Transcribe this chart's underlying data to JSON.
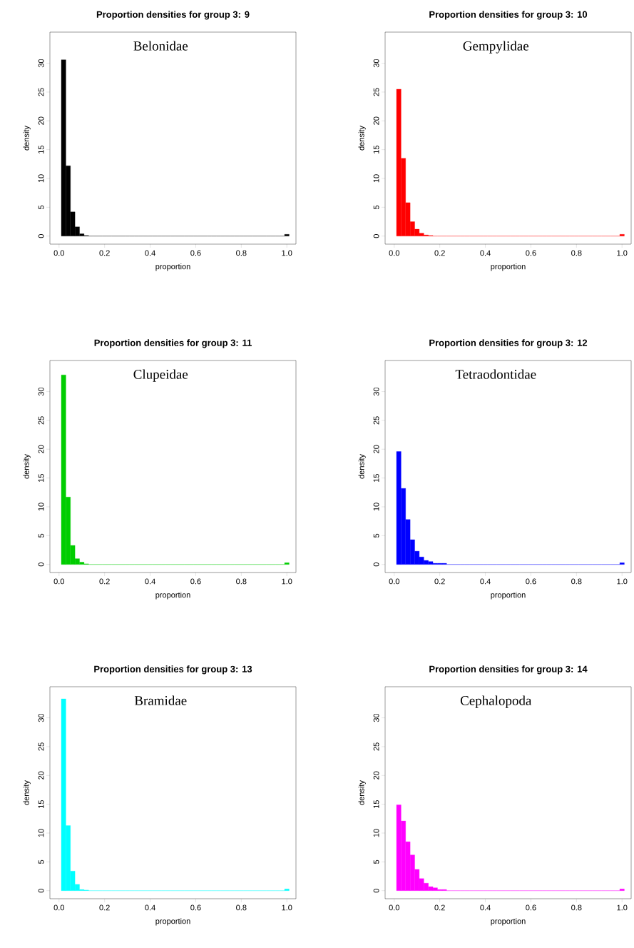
{
  "chart_data": [
    {
      "type": "histogram",
      "title": "Proportion densities for group 3: 9",
      "xlabel": "proportion",
      "ylabel": "density",
      "annotations": [
        "Belonidae"
      ],
      "color": "#000000",
      "bins": [
        0.01,
        0.03,
        0.05,
        0.07,
        0.09,
        0.11,
        0.13,
        0.15,
        0.17,
        0.19,
        0.21,
        0.23,
        0.25,
        0.27,
        0.29,
        0.31,
        0.33,
        0.35,
        0.37,
        0.39,
        0.41,
        0.43,
        0.45,
        0.47,
        0.49,
        0.51,
        0.53,
        0.55,
        0.57,
        0.59,
        0.61,
        0.63,
        0.65,
        0.67,
        0.69,
        0.71,
        0.73,
        0.75,
        0.77,
        0.79,
        0.81,
        0.83,
        0.85,
        0.87,
        0.89,
        0.91,
        0.93,
        0.95,
        0.97,
        0.99,
        1.01
      ],
      "values": [
        30.6,
        12.2,
        4.2,
        1.6,
        0.4,
        0.1,
        0,
        0,
        0,
        0,
        0,
        0,
        0,
        0,
        0,
        0,
        0,
        0,
        0,
        0,
        0,
        0,
        0,
        0,
        0,
        0,
        0,
        0,
        0,
        0,
        0,
        0,
        0,
        0,
        0,
        0,
        0,
        0,
        0,
        0,
        0,
        0,
        0,
        0,
        0,
        0,
        0,
        0,
        0,
        0.3
      ],
      "xlim": [
        -0.04,
        1.04
      ],
      "ylim": [
        -1.4,
        35.4
      ],
      "xticks": [
        {
          "value": 0,
          "label": "0.0"
        },
        {
          "value": 0.2,
          "label": "0.2"
        },
        {
          "value": 0.4,
          "label": "0.4"
        },
        {
          "value": 0.6,
          "label": "0.6"
        },
        {
          "value": 0.8,
          "label": "0.8"
        },
        {
          "value": 1,
          "label": "1.0"
        }
      ],
      "yticks": [
        0,
        5,
        10,
        15,
        20,
        25,
        30
      ]
    },
    {
      "type": "histogram",
      "title": "Proportion densities for group 3: 10",
      "xlabel": "proportion",
      "ylabel": "density",
      "annotations": [
        "Gempylidae"
      ],
      "color": "#ff0000",
      "bins": [
        0.01,
        0.03,
        0.05,
        0.07,
        0.09,
        0.11,
        0.13,
        0.15,
        0.17,
        0.19,
        0.21,
        0.23,
        0.25,
        0.27,
        0.29,
        0.31,
        0.33,
        0.35,
        0.37,
        0.39,
        0.41,
        0.43,
        0.45,
        0.47,
        0.49,
        0.51,
        0.53,
        0.55,
        0.57,
        0.59,
        0.61,
        0.63,
        0.65,
        0.67,
        0.69,
        0.71,
        0.73,
        0.75,
        0.77,
        0.79,
        0.81,
        0.83,
        0.85,
        0.87,
        0.89,
        0.91,
        0.93,
        0.95,
        0.97,
        0.99,
        1.01
      ],
      "values": [
        25.5,
        13.5,
        5.8,
        2.5,
        1.2,
        0.5,
        0.2,
        0.1,
        0,
        0,
        0,
        0,
        0,
        0,
        0,
        0,
        0,
        0,
        0,
        0,
        0,
        0,
        0,
        0,
        0,
        0,
        0,
        0,
        0,
        0,
        0,
        0,
        0,
        0,
        0,
        0,
        0,
        0,
        0,
        0,
        0,
        0,
        0,
        0,
        0,
        0,
        0,
        0,
        0,
        0.3
      ],
      "xlim": [
        -0.04,
        1.04
      ],
      "ylim": [
        -1.4,
        35.4
      ],
      "xticks": [
        {
          "value": 0,
          "label": "0.0"
        },
        {
          "value": 0.2,
          "label": "0.2"
        },
        {
          "value": 0.4,
          "label": "0.4"
        },
        {
          "value": 0.6,
          "label": "0.6"
        },
        {
          "value": 0.8,
          "label": "0.8"
        },
        {
          "value": 1,
          "label": "1.0"
        }
      ],
      "yticks": [
        0,
        5,
        10,
        15,
        20,
        25,
        30
      ]
    },
    {
      "type": "histogram",
      "title": "Proportion densities for group 3: 11",
      "xlabel": "proportion",
      "ylabel": "density",
      "annotations": [
        "Clupeidae"
      ],
      "color": "#00cd00",
      "bins": [
        0.01,
        0.03,
        0.05,
        0.07,
        0.09,
        0.11,
        0.13,
        0.15,
        0.17,
        0.19,
        0.21,
        0.23,
        0.25,
        0.27,
        0.29,
        0.31,
        0.33,
        0.35,
        0.37,
        0.39,
        0.41,
        0.43,
        0.45,
        0.47,
        0.49,
        0.51,
        0.53,
        0.55,
        0.57,
        0.59,
        0.61,
        0.63,
        0.65,
        0.67,
        0.69,
        0.71,
        0.73,
        0.75,
        0.77,
        0.79,
        0.81,
        0.83,
        0.85,
        0.87,
        0.89,
        0.91,
        0.93,
        0.95,
        0.97,
        0.99,
        1.01
      ],
      "values": [
        32.9,
        11.7,
        3.3,
        1.0,
        0.4,
        0.1,
        0,
        0,
        0,
        0,
        0,
        0,
        0,
        0,
        0,
        0,
        0,
        0,
        0,
        0,
        0,
        0,
        0,
        0,
        0,
        0,
        0,
        0,
        0,
        0,
        0,
        0,
        0,
        0,
        0,
        0,
        0,
        0,
        0,
        0,
        0,
        0,
        0,
        0,
        0,
        0,
        0,
        0,
        0,
        0.3
      ],
      "xlim": [
        -0.04,
        1.04
      ],
      "ylim": [
        -1.4,
        35.4
      ],
      "xticks": [
        {
          "value": 0,
          "label": "0.0"
        },
        {
          "value": 0.2,
          "label": "0.2"
        },
        {
          "value": 0.4,
          "label": "0.4"
        },
        {
          "value": 0.6,
          "label": "0.6"
        },
        {
          "value": 0.8,
          "label": "0.8"
        },
        {
          "value": 1,
          "label": "1.0"
        }
      ],
      "yticks": [
        0,
        5,
        10,
        15,
        20,
        25,
        30
      ]
    },
    {
      "type": "histogram",
      "title": "Proportion densities for group 3: 12",
      "xlabel": "proportion",
      "ylabel": "density",
      "annotations": [
        "Tetraodontidae"
      ],
      "color": "#0000ff",
      "bins": [
        0.01,
        0.03,
        0.05,
        0.07,
        0.09,
        0.11,
        0.13,
        0.15,
        0.17,
        0.19,
        0.21,
        0.23,
        0.25,
        0.27,
        0.29,
        0.31,
        0.33,
        0.35,
        0.37,
        0.39,
        0.41,
        0.43,
        0.45,
        0.47,
        0.49,
        0.51,
        0.53,
        0.55,
        0.57,
        0.59,
        0.61,
        0.63,
        0.65,
        0.67,
        0.69,
        0.71,
        0.73,
        0.75,
        0.77,
        0.79,
        0.81,
        0.83,
        0.85,
        0.87,
        0.89,
        0.91,
        0.93,
        0.95,
        0.97,
        0.99,
        1.01
      ],
      "values": [
        19.6,
        13.2,
        7.8,
        4.3,
        2.3,
        1.3,
        0.7,
        0.5,
        0.2,
        0.2,
        0.2,
        0,
        0,
        0,
        0,
        0,
        0,
        0,
        0,
        0,
        0,
        0,
        0,
        0,
        0,
        0,
        0,
        0,
        0,
        0,
        0,
        0,
        0,
        0,
        0,
        0,
        0,
        0,
        0,
        0,
        0,
        0,
        0,
        0,
        0,
        0,
        0,
        0,
        0,
        0.3
      ],
      "xlim": [
        -0.04,
        1.04
      ],
      "ylim": [
        -1.4,
        35.4
      ],
      "xticks": [
        {
          "value": 0,
          "label": "0.0"
        },
        {
          "value": 0.2,
          "label": "0.2"
        },
        {
          "value": 0.4,
          "label": "0.4"
        },
        {
          "value": 0.6,
          "label": "0.6"
        },
        {
          "value": 0.8,
          "label": "0.8"
        },
        {
          "value": 1,
          "label": "1.0"
        }
      ],
      "yticks": [
        0,
        5,
        10,
        15,
        20,
        25,
        30
      ]
    },
    {
      "type": "histogram",
      "title": "Proportion densities for group 3: 13",
      "xlabel": "proportion",
      "ylabel": "density",
      "annotations": [
        "Bramidae"
      ],
      "color": "#00ffff",
      "bins": [
        0.01,
        0.03,
        0.05,
        0.07,
        0.09,
        0.11,
        0.13,
        0.15,
        0.17,
        0.19,
        0.21,
        0.23,
        0.25,
        0.27,
        0.29,
        0.31,
        0.33,
        0.35,
        0.37,
        0.39,
        0.41,
        0.43,
        0.45,
        0.47,
        0.49,
        0.51,
        0.53,
        0.55,
        0.57,
        0.59,
        0.61,
        0.63,
        0.65,
        0.67,
        0.69,
        0.71,
        0.73,
        0.75,
        0.77,
        0.79,
        0.81,
        0.83,
        0.85,
        0.87,
        0.89,
        0.91,
        0.93,
        0.95,
        0.97,
        0.99,
        1.01
      ],
      "values": [
        33.3,
        11.3,
        3.4,
        1.1,
        0.2,
        0.1,
        0,
        0,
        0,
        0,
        0,
        0,
        0,
        0,
        0,
        0,
        0,
        0,
        0,
        0,
        0,
        0,
        0,
        0,
        0,
        0,
        0,
        0,
        0,
        0,
        0,
        0,
        0,
        0,
        0,
        0,
        0,
        0,
        0,
        0,
        0,
        0,
        0,
        0,
        0,
        0,
        0,
        0,
        0,
        0.3
      ],
      "xlim": [
        -0.04,
        1.04
      ],
      "ylim": [
        -1.4,
        35.4
      ],
      "xticks": [
        {
          "value": 0,
          "label": "0.0"
        },
        {
          "value": 0.2,
          "label": "0.2"
        },
        {
          "value": 0.4,
          "label": "0.4"
        },
        {
          "value": 0.6,
          "label": "0.6"
        },
        {
          "value": 0.8,
          "label": "0.8"
        },
        {
          "value": 1,
          "label": "1.0"
        }
      ],
      "yticks": [
        0,
        5,
        10,
        15,
        20,
        25,
        30
      ]
    },
    {
      "type": "histogram",
      "title": "Proportion densities for group 3: 14",
      "xlabel": "proportion",
      "ylabel": "density",
      "annotations": [
        "Cephalopoda"
      ],
      "color": "#ff00ff",
      "bins": [
        0.01,
        0.03,
        0.05,
        0.07,
        0.09,
        0.11,
        0.13,
        0.15,
        0.17,
        0.19,
        0.21,
        0.23,
        0.25,
        0.27,
        0.29,
        0.31,
        0.33,
        0.35,
        0.37,
        0.39,
        0.41,
        0.43,
        0.45,
        0.47,
        0.49,
        0.51,
        0.53,
        0.55,
        0.57,
        0.59,
        0.61,
        0.63,
        0.65,
        0.67,
        0.69,
        0.71,
        0.73,
        0.75,
        0.77,
        0.79,
        0.81,
        0.83,
        0.85,
        0.87,
        0.89,
        0.91,
        0.93,
        0.95,
        0.97,
        0.99,
        1.01
      ],
      "values": [
        14.9,
        12.1,
        8.5,
        6.2,
        3.7,
        2.1,
        1.3,
        0.7,
        0.5,
        0.2,
        0.2,
        0,
        0,
        0,
        0,
        0,
        0,
        0,
        0,
        0,
        0,
        0,
        0,
        0,
        0,
        0,
        0,
        0,
        0,
        0,
        0,
        0,
        0,
        0,
        0,
        0,
        0,
        0,
        0,
        0,
        0,
        0,
        0,
        0,
        0,
        0,
        0,
        0,
        0,
        0.3
      ],
      "xlim": [
        -0.04,
        1.04
      ],
      "ylim": [
        -1.4,
        35.4
      ],
      "xticks": [
        {
          "value": 0,
          "label": "0.0"
        },
        {
          "value": 0.2,
          "label": "0.2"
        },
        {
          "value": 0.4,
          "label": "0.4"
        },
        {
          "value": 0.6,
          "label": "0.6"
        },
        {
          "value": 0.8,
          "label": "0.8"
        },
        {
          "value": 1,
          "label": "1.0"
        }
      ],
      "yticks": [
        0,
        5,
        10,
        15,
        20,
        25,
        30
      ]
    }
  ]
}
